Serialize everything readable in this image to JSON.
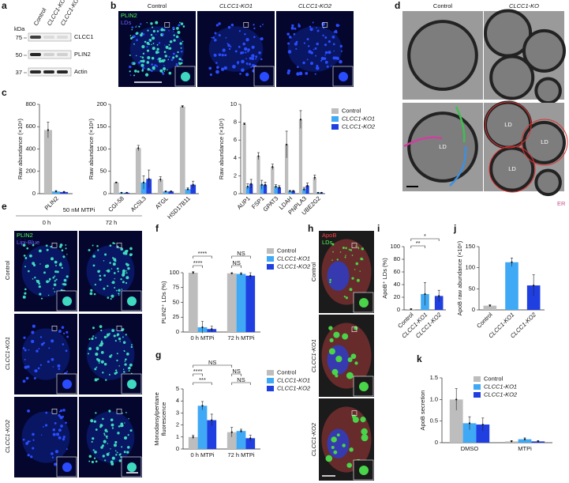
{
  "panel_labels": [
    "a",
    "b",
    "c",
    "d",
    "e",
    "f",
    "g",
    "h",
    "i",
    "j",
    "k"
  ],
  "blot": {
    "unit": "kDa",
    "markers": [
      "75",
      "50",
      "37"
    ],
    "lanes": [
      "Control",
      "CLCC1-KO1",
      "CLCC1-KO2"
    ],
    "bands": [
      "CLCC1",
      "PLIN2",
      "Actin"
    ]
  },
  "micro_b": {
    "columns": [
      "Control",
      "CLCC1-KO1",
      "CLCC1-KO2"
    ],
    "legend": [
      "PLIN2",
      "LDs"
    ]
  },
  "micro_d": {
    "columns": [
      "Control",
      "CLCC1-KO"
    ],
    "labels": [
      "LD",
      "LD",
      "LD",
      "LD"
    ],
    "er": "ER"
  },
  "micro_e": {
    "treatment": "50 nM MTPi",
    "columns": [
      "0 h",
      "72 h"
    ],
    "rows": [
      "Control",
      "CLCC1-KO1",
      "CLCC1-KO2"
    ],
    "legend": [
      "PLIN2",
      "Lipi-Blue"
    ]
  },
  "micro_h": {
    "rows": [
      "Control",
      "CLCC1-KO1",
      "CLCC1-KO2"
    ],
    "legend": [
      "ApoB",
      "LDs"
    ]
  },
  "chart_data": [
    {
      "type": "bar",
      "ylabel": "Raw abundance (×10⁶)",
      "categories": [
        "PLIN2"
      ],
      "series": [
        {
          "color": "#bdbdbd",
          "values": [
            570
          ],
          "errors": [
            70
          ]
        },
        {
          "color": "#3fa9f5",
          "values": [
            20
          ],
          "errors": [
            8
          ]
        },
        {
          "color": "#1f3fe0",
          "values": [
            15
          ],
          "errors": [
            5
          ]
        }
      ],
      "ylim": [
        0,
        800
      ],
      "yticks": [
        0,
        200,
        400,
        600,
        800
      ]
    },
    {
      "type": "bar",
      "ylabel": "Raw abundance (×10⁶)",
      "categories": [
        "CGI-58",
        "ACSL3",
        "ATGL",
        "HSD17B11"
      ],
      "series": [
        {
          "color": "#bdbdbd",
          "values": [
            25,
            102,
            32,
            195
          ],
          "errors": [
            1,
            6,
            6,
            2
          ]
        },
        {
          "color": "#3fa9f5",
          "values": [
            2,
            25,
            5,
            10
          ],
          "errors": [
            1,
            15,
            1,
            3
          ]
        },
        {
          "color": "#1f3fe0",
          "values": [
            2,
            33,
            5,
            20
          ],
          "errors": [
            1,
            20,
            1,
            8
          ]
        }
      ],
      "ylim": [
        0,
        200
      ],
      "yticks": [
        0,
        50,
        100,
        150,
        200
      ]
    },
    {
      "type": "bar",
      "ylabel": "Raw abundance (×10⁶)",
      "categories": [
        "AUP1",
        "FSP1",
        "GPAT3",
        "LDAH",
        "PNPLA3",
        "UBE2G2"
      ],
      "series": [
        {
          "name": "Control",
          "color": "#bdbdbd",
          "values": [
            7.8,
            4.2,
            3.0,
            5.5,
            8.3,
            1.8
          ],
          "errors": [
            0.1,
            0.4,
            0.3,
            1.5,
            1.0,
            0.3
          ]
        },
        {
          "name": "CLCC1-KO1",
          "color": "#3fa9f5",
          "values": [
            0.8,
            1.0,
            0.8,
            0.3,
            0.5,
            0.1
          ],
          "errors": [
            0.3,
            0.5,
            0.2,
            0.05,
            0.2,
            0.05
          ]
        },
        {
          "name": "CLCC1-KO2",
          "color": "#1f3fe0",
          "values": [
            1.1,
            1.0,
            0.7,
            0.3,
            0.9,
            0.1
          ],
          "errors": [
            0.5,
            0.3,
            0.2,
            0.05,
            0.3,
            0.05
          ]
        }
      ],
      "ylim": [
        0,
        10
      ],
      "yticks": [
        0,
        2,
        4,
        6,
        8,
        10
      ]
    },
    {
      "type": "bar",
      "ylabel": "PLIN2⁺ LDs (%)",
      "categories": [
        "0 h MTPi",
        "72 h MTPi"
      ],
      "series": [
        {
          "name": "Control",
          "color": "#bdbdbd",
          "values": [
            100,
            99
          ],
          "errors": [
            2,
            1
          ]
        },
        {
          "name": "CLCC1-KO1",
          "color": "#3fa9f5",
          "values": [
            8,
            98
          ],
          "errors": [
            10,
            2
          ]
        },
        {
          "name": "CLCC1-KO2",
          "color": "#1f3fe0",
          "values": [
            5,
            95
          ],
          "errors": [
            5,
            5
          ]
        }
      ],
      "ylim": [
        0,
        100
      ],
      "yticks": [
        0,
        25,
        50,
        75,
        100
      ],
      "annotations": [
        "****",
        "****",
        "NS",
        "NS"
      ]
    },
    {
      "type": "bar",
      "ylabel": [
        "Monodansylpentane",
        "fluorescence"
      ],
      "categories": [
        "0 h MTPi",
        "72 h MTPi"
      ],
      "series": [
        {
          "name": "Control",
          "color": "#bdbdbd",
          "values": [
            1.0,
            1.4
          ],
          "errors": [
            0.15,
            0.4
          ]
        },
        {
          "name": "CLCC1-KO1",
          "color": "#3fa9f5",
          "values": [
            3.6,
            1.5
          ],
          "errors": [
            0.35,
            0.15
          ]
        },
        {
          "name": "CLCC1-KO2",
          "color": "#1f3fe0",
          "values": [
            2.4,
            0.9
          ],
          "errors": [
            0.5,
            0.25
          ]
        }
      ],
      "ylim": [
        0,
        5
      ],
      "yticks": [
        0,
        1,
        2,
        3,
        4,
        5
      ],
      "annotations": [
        "NS",
        "****",
        "***",
        "NS",
        "NS"
      ]
    },
    {
      "type": "bar",
      "ylabel": "ApoB⁺ LDs (%)",
      "categories": [
        "Control",
        "CLCC1-KO1",
        "CLCC1-KO2"
      ],
      "values": [
        1,
        25,
        22
      ],
      "errors": [
        1,
        18,
        9
      ],
      "colors": [
        "#bdbdbd",
        "#3fa9f5",
        "#1f3fe0"
      ],
      "ylim": [
        0,
        100
      ],
      "yticks": [
        0,
        20,
        40,
        60,
        80,
        100
      ],
      "annotations": [
        "*",
        "**"
      ]
    },
    {
      "type": "bar",
      "ylabel": "ApoB raw abundance (×10⁶)",
      "categories": [
        "Control",
        "CLCC1-KO1",
        "CLCC1-KO2"
      ],
      "values": [
        10,
        113,
        58
      ],
      "errors": [
        2,
        10,
        25
      ],
      "colors": [
        "#bdbdbd",
        "#3fa9f5",
        "#1f3fe0"
      ],
      "ylim": [
        0,
        150
      ],
      "yticks": [
        0,
        50,
        100,
        150
      ]
    },
    {
      "type": "bar",
      "ylabel": "ApoB secretion",
      "categories": [
        "DMSO",
        "MTPi"
      ],
      "series": [
        {
          "name": "Control",
          "color": "#bdbdbd",
          "values": [
            1.0,
            0.03
          ],
          "errors": [
            0.25,
            0.02
          ]
        },
        {
          "name": "CLCC1-KO1",
          "color": "#3fa9f5",
          "values": [
            0.45,
            0.08
          ],
          "errors": [
            0.15,
            0.03
          ]
        },
        {
          "name": "CLCC1-KO2",
          "color": "#1f3fe0",
          "values": [
            0.42,
            0.03
          ],
          "errors": [
            0.15,
            0.02
          ]
        }
      ],
      "ylim": [
        0,
        1.5
      ],
      "yticks": [
        0,
        0.5,
        {
          "value": 1,
          "label": "1.0"
        },
        1.5
      ]
    }
  ]
}
